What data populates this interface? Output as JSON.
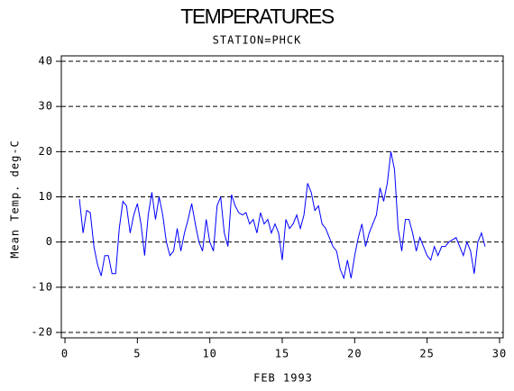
{
  "chart_data": {
    "type": "line",
    "title": "TEMPERATURES",
    "subtitle": "STATION=PHCK",
    "x_label": "FEB 1993",
    "y_label": "Mean Temp. deg-C",
    "x": [
      1,
      1.25,
      1.5,
      1.75,
      2,
      2.25,
      2.5,
      2.75,
      3,
      3.25,
      3.5,
      3.75,
      4,
      4.25,
      4.5,
      4.75,
      5,
      5.25,
      5.5,
      5.75,
      6,
      6.25,
      6.5,
      6.75,
      7,
      7.25,
      7.5,
      7.75,
      8,
      8.25,
      8.5,
      8.75,
      9,
      9.25,
      9.5,
      9.75,
      10,
      10.25,
      10.5,
      10.75,
      11,
      11.25,
      11.5,
      11.75,
      12,
      12.25,
      12.5,
      12.75,
      13,
      13.25,
      13.5,
      13.75,
      14,
      14.25,
      14.5,
      14.75,
      15,
      15.25,
      15.5,
      15.75,
      16,
      16.25,
      16.5,
      16.75,
      17,
      17.25,
      17.5,
      17.75,
      18,
      18.25,
      18.5,
      18.75,
      19,
      19.25,
      19.5,
      19.75,
      20,
      20.25,
      20.5,
      20.75,
      21,
      21.25,
      21.5,
      21.75,
      22,
      22.25,
      22.5,
      22.75,
      23,
      23.25,
      23.5,
      23.75,
      24,
      24.25,
      24.5,
      24.75,
      25,
      25.25,
      25.5,
      25.75,
      26,
      26.25,
      26.5,
      26.75,
      27,
      27.25,
      27.5,
      27.75,
      28,
      28.25,
      28.5,
      28.75,
      29
    ],
    "values": [
      9.5,
      2,
      7,
      6.5,
      -1,
      -5,
      -7.5,
      -3,
      -3,
      -7,
      -7,
      3,
      9,
      8,
      2,
      6,
      8.5,
      4,
      -3,
      6,
      11,
      5,
      10,
      6,
      0,
      -3,
      -2,
      3,
      -2,
      2,
      5,
      8.5,
      4,
      0,
      -2,
      5,
      0,
      -2,
      8,
      10,
      2,
      -1,
      10.5,
      8,
      6.5,
      6,
      6.5,
      4,
      5,
      2,
      6.5,
      4,
      5,
      2,
      4,
      2,
      -4,
      5,
      3,
      4,
      6,
      3,
      6,
      13,
      11,
      7,
      8,
      4,
      3,
      1,
      -1,
      -2,
      -6,
      -8,
      -4,
      -8,
      -3,
      1,
      4,
      -1,
      2,
      4,
      6,
      12,
      9,
      13,
      20,
      16,
      3,
      -2,
      5,
      5,
      2,
      -2,
      1,
      -1,
      -3,
      -4,
      -1,
      -3,
      -1,
      -1,
      0,
      0.5,
      1,
      -1,
      -3,
      0,
      -2,
      -7,
      0,
      2,
      -1
    ],
    "color": "#0000ff",
    "xlim": [
      -0.25,
      30.25
    ],
    "ylim": [
      -21.2,
      41.2
    ],
    "xticks": [
      0,
      5,
      10,
      15,
      20,
      25,
      30
    ],
    "yticks": [
      -20,
      -10,
      0,
      10,
      20,
      30,
      40
    ],
    "grid": true
  }
}
